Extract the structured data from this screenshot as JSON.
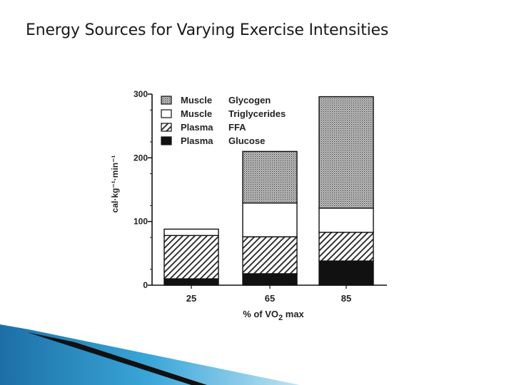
{
  "slide": {
    "title": "Energy Sources for Varying Exercise Intensities"
  },
  "chart_data": {
    "type": "bar",
    "stacked": true,
    "title": "",
    "xlabel": "% of VO2 max",
    "ylabel": "cal·kg⁻¹·min⁻¹",
    "categories": [
      "25",
      "65",
      "85"
    ],
    "ylim": [
      0,
      300
    ],
    "yticks": [
      0,
      100,
      200,
      300
    ],
    "grid": false,
    "legend_position": "top-left",
    "series": [
      {
        "name": "Plasma Glucose",
        "values": [
          10,
          18,
          38
        ],
        "pattern": "solid",
        "color": "#111111"
      },
      {
        "name": "Plasma FFA",
        "values": [
          68,
          58,
          45
        ],
        "pattern": "hatch",
        "color": "#222222"
      },
      {
        "name": "Muscle Triglycerides",
        "values": [
          10,
          53,
          38
        ],
        "pattern": "blank",
        "color": "#ffffff"
      },
      {
        "name": "Muscle Glycogen",
        "values": [
          0,
          81,
          175
        ],
        "pattern": "dots",
        "color": "#888888"
      }
    ]
  }
}
